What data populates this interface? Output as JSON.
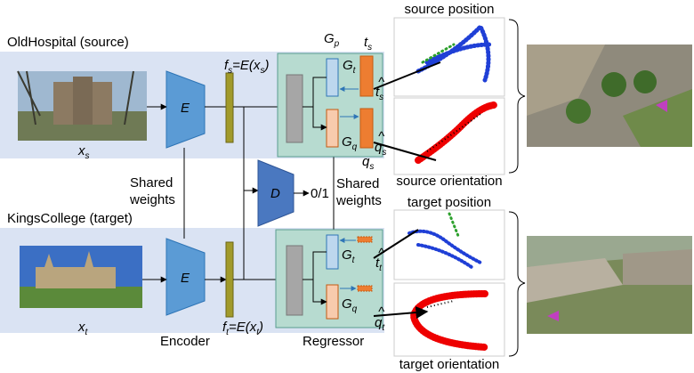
{
  "source_domain": "OldHospital (source)",
  "target_domain": "KingsCollege (target)",
  "source_image": [
    "x",
    "s"
  ],
  "target_image": [
    "x",
    "t"
  ],
  "encoder_symbol": "E",
  "encoder_label": "Encoder",
  "source_feature": [
    "f",
    "s",
    "=E(x",
    "s",
    ")"
  ],
  "target_feature": [
    "f",
    "t",
    "=E(x",
    "t",
    ")"
  ],
  "shared_weights_left": [
    "Shared",
    "weights"
  ],
  "shared_weights_right": [
    "Shared",
    "weights"
  ],
  "discriminator": "D",
  "discriminator_output": "0/1",
  "regressor_group": [
    "G",
    "p"
  ],
  "regressor_label": "Regressor",
  "position_head": [
    "G",
    "t"
  ],
  "orientation_head": [
    "G",
    "q"
  ],
  "source_t": [
    "t",
    "s"
  ],
  "source_q": [
    "q",
    "s"
  ],
  "source_t_hat": [
    "t",
    "s"
  ],
  "source_q_hat": [
    "q",
    "s"
  ],
  "target_t_hat": [
    "t",
    "t"
  ],
  "target_q_hat": [
    "q",
    "t"
  ],
  "plots": {
    "source_position": "source position",
    "source_orientation": "source orientation",
    "target_position": "target position",
    "target_orientation": "target orientation"
  }
}
